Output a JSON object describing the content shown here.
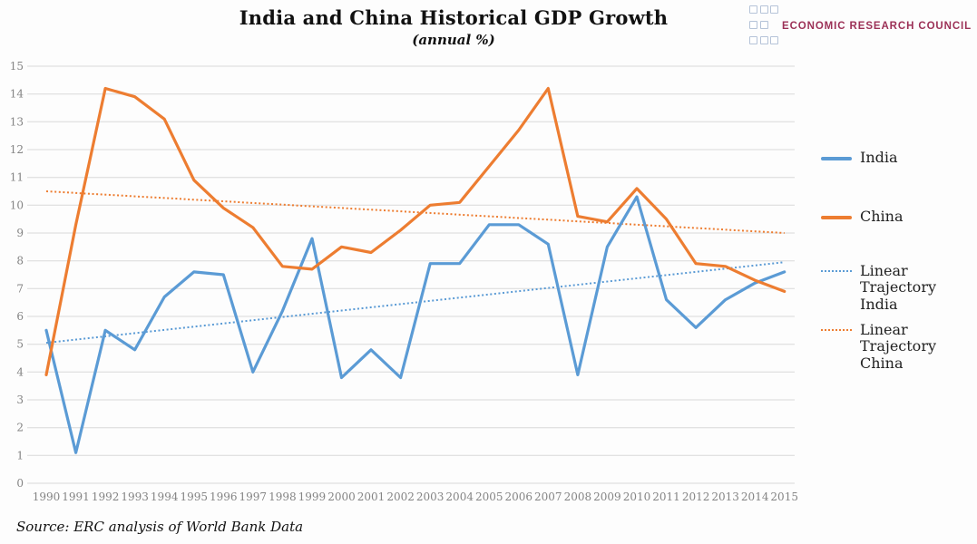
{
  "header": {
    "title": "India and China Historical GDP Growth",
    "subtitle": "(annual %)"
  },
  "logo": {
    "text": "ECONOMIC RESEARCH COUNCIL",
    "brand_color": "#9c3157",
    "square_border_color": "#b5c3d8"
  },
  "source": "Source: ERC analysis of World Bank Data",
  "colors": {
    "india": "#5B9BD5",
    "china": "#ED7D31",
    "gridline": "#d9d9d9",
    "axis_text": "#848484"
  },
  "legend": {
    "position": "right",
    "items": [
      {
        "label": "India",
        "color": "#5B9BD5",
        "style": "solid"
      },
      {
        "label": "China",
        "color": "#ED7D31",
        "style": "solid"
      },
      {
        "label": "Linear Trajectory India",
        "color": "#5B9BD5",
        "style": "dotted"
      },
      {
        "label": "Linear Trajectory China",
        "color": "#ED7D31",
        "style": "dotted"
      }
    ]
  },
  "chart_data": {
    "type": "line",
    "title": "India and China Historical GDP Growth",
    "subtitle": "(annual %)",
    "xlabel": "",
    "ylabel": "",
    "x": [
      1990,
      1991,
      1992,
      1993,
      1994,
      1995,
      1996,
      1997,
      1998,
      1999,
      2000,
      2001,
      2002,
      2003,
      2004,
      2005,
      2006,
      2007,
      2008,
      2009,
      2010,
      2011,
      2012,
      2013,
      2014,
      2015
    ],
    "ylim": [
      0,
      15
    ],
    "ytick_step": 1,
    "grid": true,
    "legend_position": "right",
    "series": [
      {
        "name": "India",
        "color": "#5B9BD5",
        "line": "solid",
        "values": [
          5.5,
          1.1,
          5.5,
          4.8,
          6.7,
          7.6,
          7.5,
          4.0,
          6.2,
          8.8,
          3.8,
          4.8,
          3.8,
          7.9,
          7.9,
          9.3,
          9.3,
          8.6,
          3.9,
          8.5,
          10.3,
          6.6,
          5.6,
          6.6,
          7.2,
          7.6
        ]
      },
      {
        "name": "China",
        "color": "#ED7D31",
        "line": "solid",
        "values": [
          3.9,
          9.3,
          14.2,
          13.9,
          13.1,
          10.9,
          9.9,
          9.2,
          7.8,
          7.7,
          8.5,
          8.3,
          9.1,
          10.0,
          10.1,
          11.4,
          12.7,
          14.2,
          9.6,
          9.4,
          10.6,
          9.5,
          7.9,
          7.8,
          7.3,
          6.9
        ]
      },
      {
        "name": "Linear Trajectory India",
        "color": "#5B9BD5",
        "line": "dotted",
        "endpoints": [
          5.05,
          7.95
        ]
      },
      {
        "name": "Linear Trajectory China",
        "color": "#ED7D31",
        "line": "dotted",
        "endpoints": [
          10.5,
          9.0
        ]
      }
    ]
  }
}
